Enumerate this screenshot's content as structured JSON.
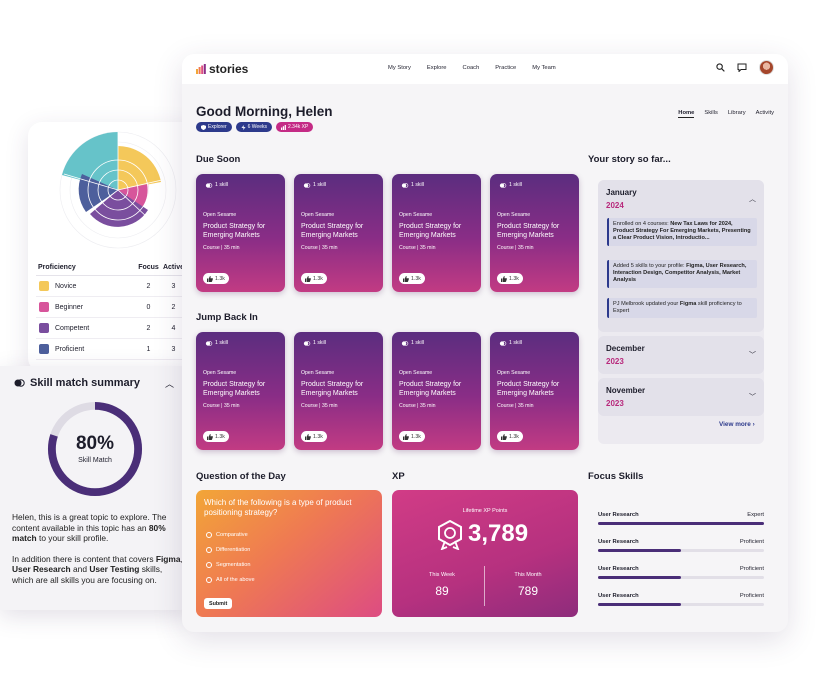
{
  "proficiency_panel": {
    "headers": {
      "name": "Proficiency",
      "focus": "Focus",
      "active": "Active"
    },
    "rows": [
      {
        "name": "Novice",
        "focus": "2",
        "active": "3",
        "color": "#f4c85a"
      },
      {
        "name": "Beginner",
        "focus": "0",
        "active": "2",
        "color": "#d7559b"
      },
      {
        "name": "Competent",
        "focus": "2",
        "active": "4",
        "color": "#7a4e9e"
      },
      {
        "name": "Proficient",
        "focus": "1",
        "active": "3",
        "color": "#4d5f9c"
      }
    ],
    "chart_colors": [
      "#66c3c9",
      "#f4c85a",
      "#d7559b",
      "#7a4e9e",
      "#4d5f9c"
    ]
  },
  "skill_match": {
    "title": "Skill match summary",
    "percent": "80%",
    "percent_value": 0.8,
    "label": "Skill Match",
    "para1_a": "Helen, this is a great topic to explore. The content available in this topic has an ",
    "para1_b": "80% match",
    "para1_c": " to your skill profile.",
    "para2_a": "In addition there is content that covers ",
    "para2_b": "Figma",
    "para2_c": ", ",
    "para2_d": "User Research",
    "para2_e": " and ",
    "para2_f": "User Testing",
    "para2_g": " skills, which are all skills you are focusing on."
  },
  "topbar": {
    "logo": "stories",
    "nav": [
      "My Story",
      "Explore",
      "Coach",
      "Practice",
      "My Team"
    ]
  },
  "header": {
    "greeting": "Good Morning, Helen",
    "badges": [
      {
        "label": "Explorer",
        "color": "#2d3a8c"
      },
      {
        "label": "6 Weeks",
        "color": "#2d3a8c"
      },
      {
        "label": "2.34k XP",
        "color": "#c42b85"
      }
    ],
    "tabs": [
      "Home",
      "Skills",
      "Library",
      "Activity"
    ]
  },
  "sections": {
    "due_soon": "Due Soon",
    "jump_back_in": "Jump Back In",
    "your_story": "Your story so far...",
    "question": "Question of the Day",
    "xp": "XP",
    "focus": "Focus Skills"
  },
  "card": {
    "skill": "1 skill",
    "org": "Open Sesame",
    "title": "Product Strategy for Emerging Markets",
    "meta": "Course | 35 min",
    "likes": "1.3k"
  },
  "story": {
    "months": [
      {
        "month": "January",
        "year": "2024"
      },
      {
        "month": "December",
        "year": "2023"
      },
      {
        "month": "November",
        "year": "2023"
      }
    ],
    "events": [
      {
        "pre": "Enrolled on 4 courses: ",
        "bold": "New Tax Laws for 2024, Product Strategy For Emerging Markets, Presenting a Clear Product Vision, Introductio...",
        "post": ""
      },
      {
        "pre": "Added 5 skills to your profile: ",
        "bold": "Figma, User Research, Interaction Design, Competitor Analysis, Market Analysis",
        "post": ""
      },
      {
        "pre": "PJ Melbrook updated your ",
        "bold": "Figma",
        "post": " skill proficiency to Expert"
      }
    ],
    "view_more": "View more ›"
  },
  "question": {
    "text": "Which of the following is a type of product positioning strategy?",
    "options": [
      "Comparative",
      "Differentiation",
      "Segmentation",
      "All of the above"
    ],
    "submit": "Submit"
  },
  "xp": {
    "lifetime_label": "Lifetime XP Points",
    "lifetime_value": "3,789",
    "week_label": "This Week",
    "week_value": "89",
    "month_label": "This Month",
    "month_value": "789"
  },
  "focus_skills": [
    {
      "name": "User Research",
      "level": "Expert",
      "fill": 1.0
    },
    {
      "name": "User Research",
      "level": "Proficient",
      "fill": 0.5
    },
    {
      "name": "User Research",
      "level": "Proficient",
      "fill": 0.5
    },
    {
      "name": "User Research",
      "level": "Proficient",
      "fill": 0.5
    }
  ]
}
